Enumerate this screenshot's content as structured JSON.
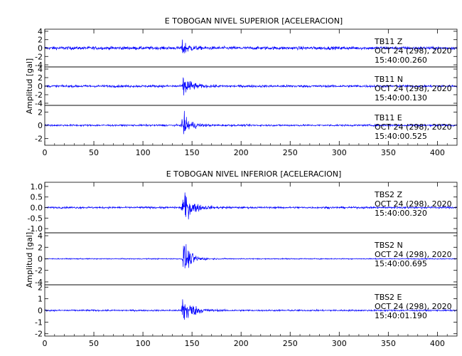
{
  "colors": {
    "trace": "#0000ff",
    "axis": "#000000",
    "background": "#ffffff"
  },
  "chart_data": [
    {
      "type": "line",
      "title": "E TOBOGAN NIVEL SUPERIOR [ACELERACION]",
      "ylabel": "Amplitud [gal]",
      "xlim": [
        0,
        420
      ],
      "xticks": [
        "0",
        "50",
        "100",
        "150",
        "200",
        "250",
        "300",
        "350",
        "400"
      ],
      "grid": false,
      "series": [
        {
          "name": "TB11 Z",
          "station": "TB11",
          "component": "Z",
          "date": "OCT 24 (298), 2020",
          "time": "15:40:00.260",
          "ylim": [
            -4.5,
            4.5
          ],
          "yticks": [
            "4",
            "2",
            "0",
            "-2",
            "-4"
          ],
          "noise": 0.35,
          "peak": 2.2,
          "onset": 139,
          "decay": 6
        },
        {
          "name": "TB11 N",
          "station": "TB11",
          "component": "N",
          "date": "OCT 24 (298), 2020",
          "time": "15:40:00.130",
          "ylim": [
            -4.5,
            4.5
          ],
          "yticks": [
            "4",
            "2",
            "0",
            "-2",
            "-4"
          ],
          "noise": 0.25,
          "peak": 3.2,
          "onset": 140,
          "decay": 7
        },
        {
          "name": "TB11 E",
          "station": "TB11",
          "component": "E",
          "date": "OCT 24 (298), 2020",
          "time": "15:40:00.525",
          "ylim": [
            -3,
            3
          ],
          "yticks": [
            "2",
            "0",
            "-2"
          ],
          "noise": 0.12,
          "peak": 1.9,
          "onset": 139,
          "decay": 8
        }
      ]
    },
    {
      "type": "line",
      "title": "E TOBOGAN NIVEL INFERIOR [ACELERACION]",
      "ylabel": "Amplitud [gal]",
      "xlim": [
        0,
        420
      ],
      "xticks": [
        "0",
        "50",
        "100",
        "150",
        "200",
        "250",
        "300",
        "350",
        "400"
      ],
      "grid": false,
      "series": [
        {
          "name": "TBS2 Z",
          "station": "TBS2",
          "component": "Z",
          "date": "OCT 24 (298), 2020",
          "time": "15:40:00.320",
          "ylim": [
            -1.2,
            1.2
          ],
          "yticks": [
            "1.0",
            "0.5",
            "0.0",
            "-0.5",
            "-1.0"
          ],
          "noise": 0.04,
          "peak": 0.9,
          "onset": 139,
          "decay": 9
        },
        {
          "name": "TBS2 N",
          "station": "TBS2",
          "component": "N",
          "date": "OCT 24 (298), 2020",
          "time": "15:40:00.695",
          "ylim": [
            -4.5,
            4.5
          ],
          "yticks": [
            "4",
            "2",
            "0",
            "-2",
            "-4"
          ],
          "noise": 0.08,
          "peak": 3.5,
          "onset": 140,
          "decay": 7
        },
        {
          "name": "TBS2 E",
          "station": "TBS2",
          "component": "E",
          "date": "OCT 24 (298), 2020",
          "time": "15:40:01.190",
          "ylim": [
            -2.2,
            2.2
          ],
          "yticks": [
            "2",
            "1",
            "0",
            "-1",
            "-2"
          ],
          "noise": 0.06,
          "peak": 1.6,
          "onset": 139,
          "decay": 9
        }
      ]
    }
  ]
}
